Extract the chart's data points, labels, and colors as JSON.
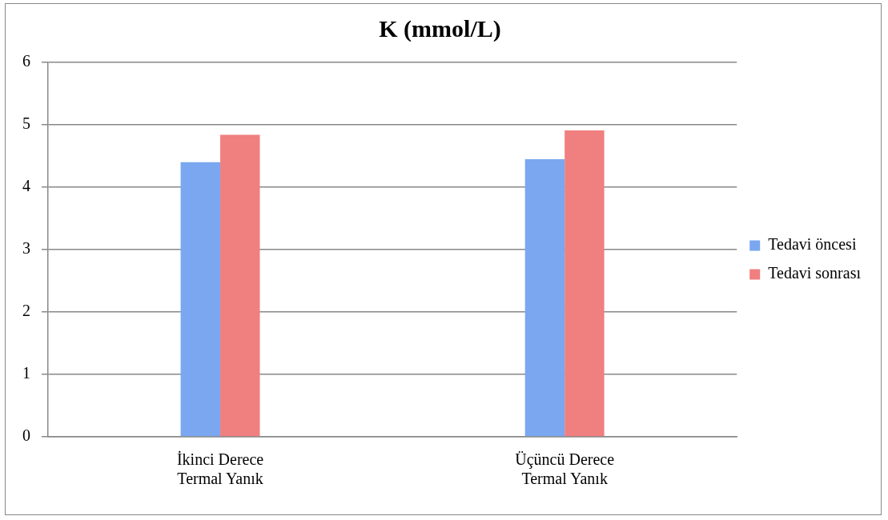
{
  "chart_data": {
    "type": "bar",
    "title": "K (mmol/L)",
    "categories": [
      "İkinci Derece Termal Yanık",
      "Üçüncü Derece Termal Yanık"
    ],
    "series": [
      {
        "name": "Tedavi öncesi",
        "color": "#7aa7f0",
        "values": [
          4.4,
          4.45
        ]
      },
      {
        "name": "Tedavi sonrası",
        "color": "#f07f7f",
        "values": [
          4.84,
          4.91
        ]
      }
    ],
    "ylim": [
      0,
      6
    ],
    "yticks": [
      0,
      1,
      2,
      3,
      4,
      5,
      6
    ],
    "grid": "y",
    "legend": "right"
  }
}
